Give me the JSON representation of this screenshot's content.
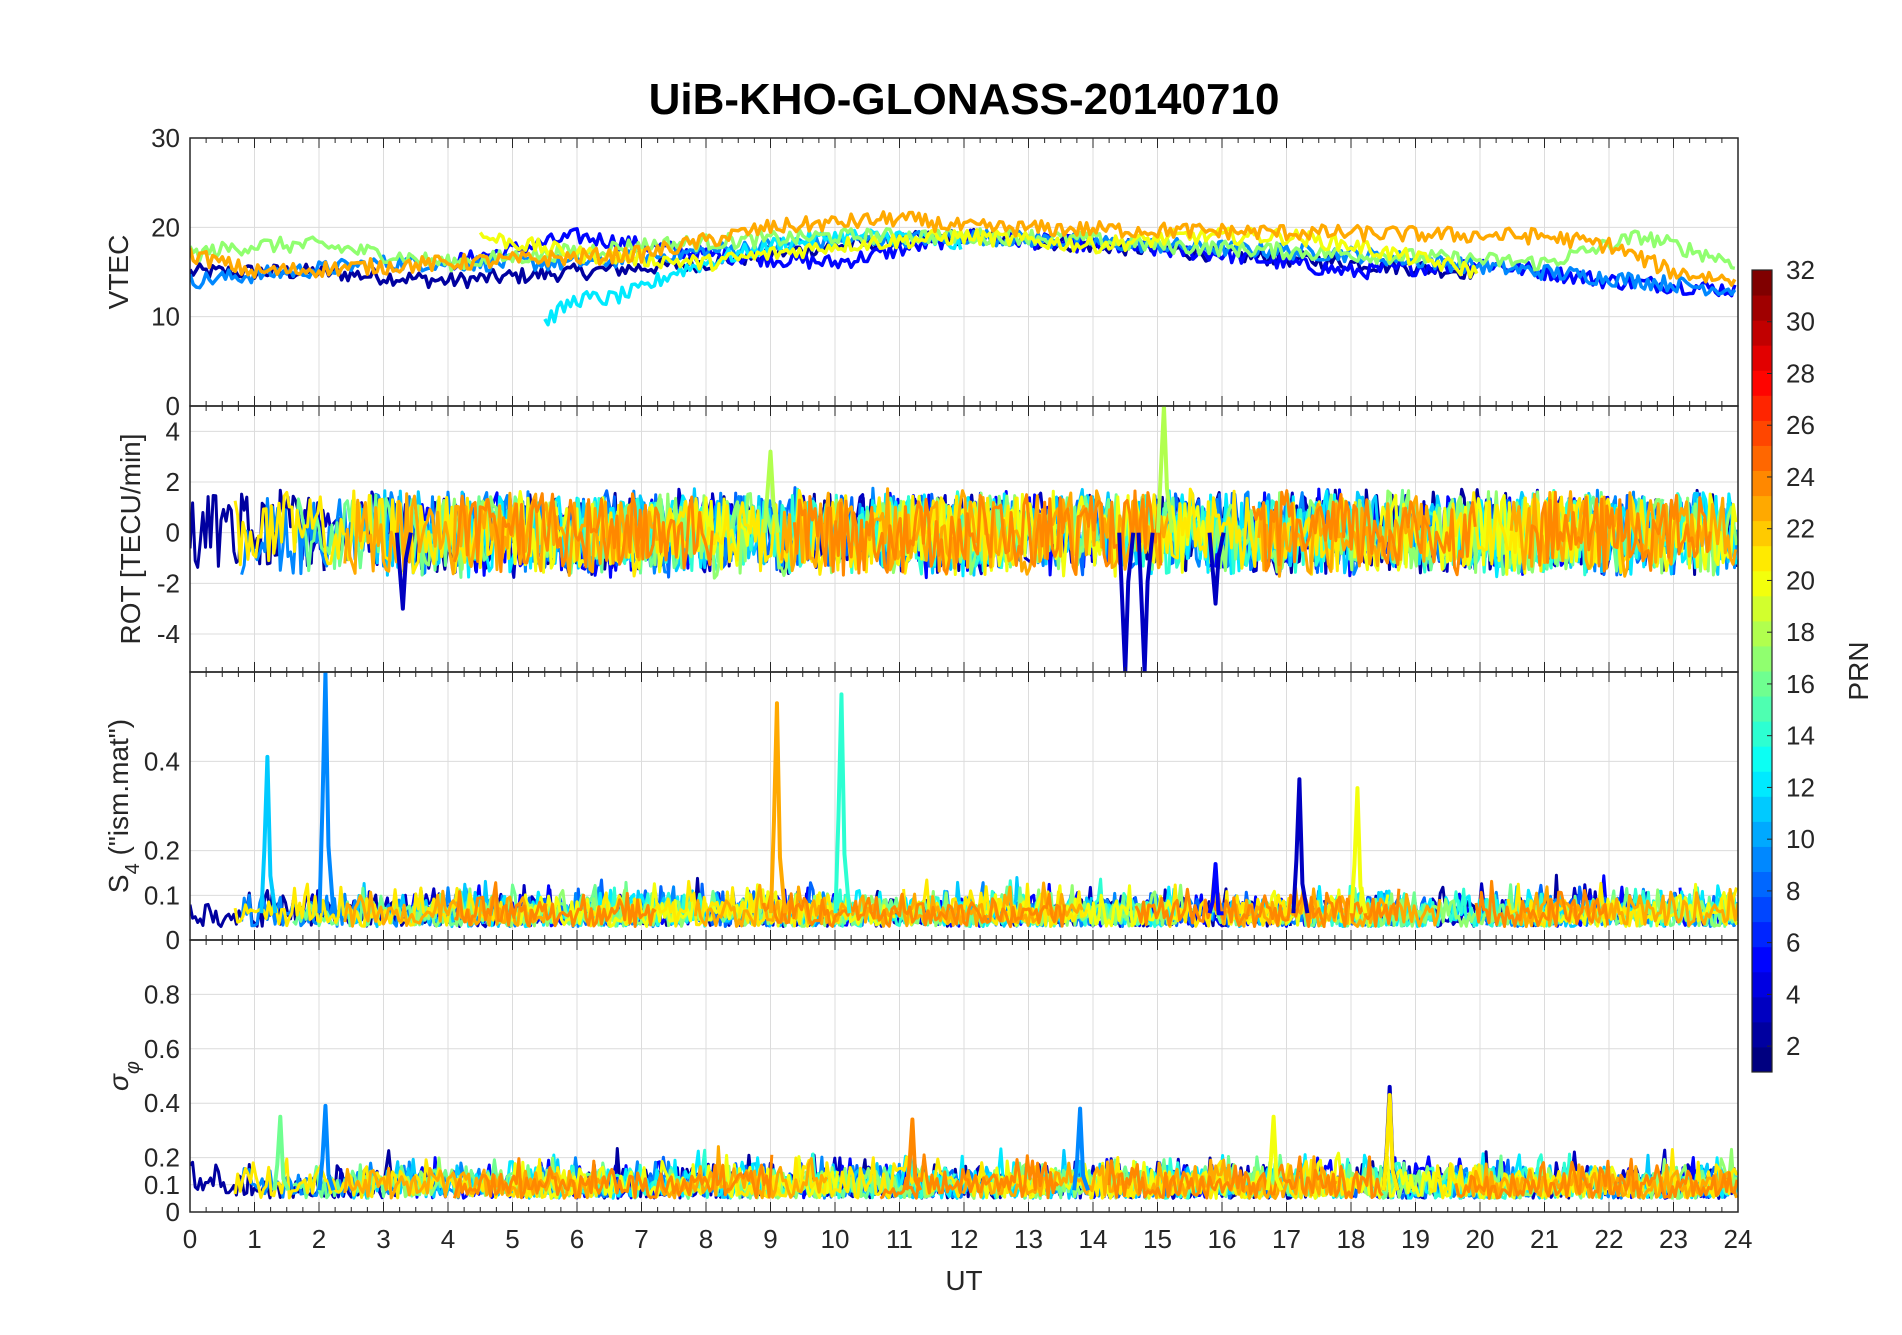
{
  "chart_data": {
    "type": "line",
    "title": "UiB-KHO-GLONASS-20140710",
    "xlabel": "UT",
    "xlim": [
      0,
      24
    ],
    "x_ticks": [
      "0",
      "1",
      "2",
      "3",
      "4",
      "5",
      "6",
      "7",
      "8",
      "9",
      "10",
      "11",
      "12",
      "13",
      "14",
      "15",
      "16",
      "17",
      "18",
      "19",
      "20",
      "21",
      "22",
      "23",
      "24"
    ],
    "grid": true,
    "colormap": "jet",
    "colorbar": {
      "label": "PRN",
      "range": [
        1,
        32
      ],
      "tick_labels": [
        "2",
        "4",
        "6",
        "8",
        "10",
        "12",
        "14",
        "16",
        "18",
        "20",
        "22",
        "24",
        "26",
        "28",
        "30",
        "32"
      ],
      "placement": "right"
    },
    "panels": [
      {
        "id": "vtec",
        "ylabel": "VTEC",
        "ylim": [
          0,
          30
        ],
        "y_ticks": [
          "0",
          "10",
          "20",
          "30"
        ],
        "series": [
          {
            "prn": 2,
            "x": [
              0,
              2,
              4,
              6,
              8,
              10,
              12,
              14,
              16,
              18,
              20
            ],
            "values": [
              15,
              15,
              14,
              15,
              16,
              18,
              19,
              18,
              17,
              16,
              15
            ]
          },
          {
            "prn": 5,
            "x": [
              4,
              6,
              8,
              10,
              12,
              14,
              16,
              18,
              20,
              22,
              24
            ],
            "values": [
              16,
              19,
              17,
              16,
              19,
              18,
              17,
              15,
              16,
              14,
              13
            ]
          },
          {
            "prn": 9,
            "x": [
              0,
              3,
              6,
              9,
              12,
              15,
              18,
              21,
              24
            ],
            "values": [
              14,
              16,
              16,
              18,
              19,
              18,
              17,
              15,
              13
            ]
          },
          {
            "prn": 12,
            "x": [
              5.5,
              6,
              6.5,
              7,
              7.5,
              8,
              9,
              10,
              11,
              12
            ],
            "values": [
              9.5,
              12,
              12,
              13,
              15,
              16,
              18,
              19,
              19,
              18
            ]
          },
          {
            "prn": 17,
            "x": [
              0,
              1,
              2,
              4,
              7,
              10,
              13,
              15,
              18,
              21,
              22.5,
              24
            ],
            "values": [
              17,
              18,
              18,
              16,
              18,
              19,
              19,
              18,
              17,
              16,
              19,
              16
            ]
          },
          {
            "prn": 20,
            "x": [
              4.5,
              6,
              8,
              10,
              12,
              14,
              15.5,
              17,
              18,
              20
            ],
            "values": [
              19,
              17,
              16,
              18,
              19,
              18,
              19,
              19,
              18,
              15
            ]
          },
          {
            "prn": 23,
            "x": [
              0,
              1,
              7,
              9,
              11,
              12,
              21,
              22,
              23,
              24
            ],
            "values": [
              17,
              15,
              17,
              20,
              21,
              20,
              19,
              18,
              15,
              14
            ]
          }
        ]
      },
      {
        "id": "rot",
        "ylabel": "ROT [TECU/min]",
        "ylim": [
          -5.5,
          5
        ],
        "y_ticks": [
          "-4",
          "-2",
          "0",
          "2",
          "4"
        ],
        "notable_spikes": [
          {
            "x": 14.5,
            "value": -5.5
          },
          {
            "x": 14.8,
            "value": -5.5
          },
          {
            "x": 15.1,
            "value": 5
          },
          {
            "x": 9.0,
            "value": 3.2
          },
          {
            "x": 3.3,
            "value": -3.0
          },
          {
            "x": 15.9,
            "value": -2.8
          }
        ],
        "typical_range": [
          -1.5,
          1.5
        ]
      },
      {
        "id": "s4",
        "ylabel": "S4 (\"ism.mat\")",
        "ylabel_main": "S",
        "ylabel_sub": "4",
        "ylabel_rest": " (\"ism.mat\")",
        "ylim": [
          0,
          0.6
        ],
        "y_ticks": [
          "0",
          "0.1",
          "0.2",
          "0.4"
        ],
        "notable_spikes": [
          {
            "x": 1.2,
            "value": 0.41,
            "prn": 11
          },
          {
            "x": 2.1,
            "value": 0.6,
            "prn": 9
          },
          {
            "x": 9.1,
            "value": 0.53,
            "prn": 23
          },
          {
            "x": 10.1,
            "value": 0.55,
            "prn": 14
          },
          {
            "x": 17.2,
            "value": 0.36,
            "prn": 3
          },
          {
            "x": 18.1,
            "value": 0.34,
            "prn": 20
          },
          {
            "x": 15.9,
            "value": 0.17,
            "prn": 5
          }
        ],
        "typical_range": [
          0.03,
          0.15
        ]
      },
      {
        "id": "sigma_phi",
        "ylabel": "σφ",
        "ylabel_main": "σ",
        "ylabel_sub": "φ",
        "ylim": [
          0,
          1
        ],
        "y_ticks": [
          "0",
          "0.1",
          "0.2",
          "0.4",
          "0.6",
          "0.8"
        ],
        "notable_spikes": [
          {
            "x": 2.1,
            "value": 0.39,
            "prn": 9
          },
          {
            "x": 18.6,
            "value": 0.46,
            "prn": 3
          },
          {
            "x": 18.6,
            "value": 0.43,
            "prn": 21
          },
          {
            "x": 13.8,
            "value": 0.38,
            "prn": 9
          },
          {
            "x": 11.2,
            "value": 0.34,
            "prn": 24
          },
          {
            "x": 1.4,
            "value": 0.35,
            "prn": 16
          },
          {
            "x": 16.8,
            "value": 0.35,
            "prn": 20
          }
        ],
        "typical_range": [
          0.05,
          0.25
        ]
      }
    ]
  }
}
